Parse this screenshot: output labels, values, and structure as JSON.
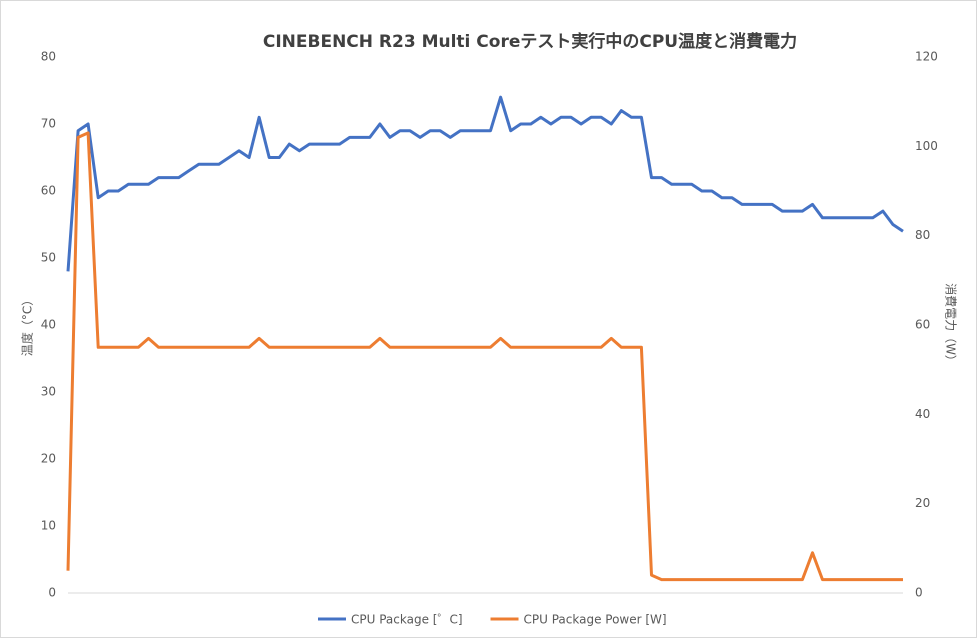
{
  "chart_data": {
    "type": "line",
    "title": "CINEBENCH R23 Multi Coreテスト実行中のCPU温度と消費電力",
    "y_label": "温度（°C）",
    "y2_label": "消費電力（W）",
    "ylim": [
      0,
      80
    ],
    "yticks": [
      0,
      10,
      20,
      30,
      40,
      50,
      60,
      70,
      80
    ],
    "y2lim": [
      0,
      120
    ],
    "y2ticks": [
      0,
      20,
      40,
      60,
      80,
      100,
      120
    ],
    "grid": false,
    "legend": "bottom",
    "series": [
      {
        "name": "CPU Package [゜C]",
        "color": "#4472c4",
        "values": [
          48,
          69,
          70,
          59,
          60,
          60,
          61,
          61,
          61,
          62,
          62,
          62,
          63,
          64,
          64,
          64,
          65,
          66,
          65,
          71,
          65,
          65,
          67,
          66,
          67,
          67,
          67,
          67,
          68,
          68,
          68,
          70,
          68,
          69,
          69,
          68,
          69,
          69,
          68,
          69,
          69,
          69,
          69,
          74,
          69,
          70,
          70,
          71,
          70,
          71,
          71,
          70,
          71,
          71,
          70,
          72,
          71,
          71,
          62,
          62,
          61,
          61,
          61,
          60,
          60,
          59,
          59,
          58,
          58,
          58,
          58,
          57,
          57,
          57,
          58,
          56,
          56,
          56,
          56,
          56,
          56,
          57,
          55,
          54
        ]
      },
      {
        "name": "CPU Package Power [W]",
        "color": "#ed7d31",
        "axis": "y2",
        "values": [
          5,
          102,
          103,
          55,
          55,
          55,
          55,
          55,
          57,
          55,
          55,
          55,
          55,
          55,
          55,
          55,
          55,
          55,
          55,
          57,
          55,
          55,
          55,
          55,
          55,
          55,
          55,
          55,
          55,
          55,
          55,
          57,
          55,
          55,
          55,
          55,
          55,
          55,
          55,
          55,
          55,
          55,
          55,
          57,
          55,
          55,
          55,
          55,
          55,
          55,
          55,
          55,
          55,
          55,
          57,
          55,
          55,
          55,
          4,
          3,
          3,
          3,
          3,
          3,
          3,
          3,
          3,
          3,
          3,
          3,
          3,
          3,
          3,
          3,
          9,
          3,
          3,
          3,
          3,
          3,
          3,
          3,
          3,
          3
        ]
      }
    ]
  }
}
